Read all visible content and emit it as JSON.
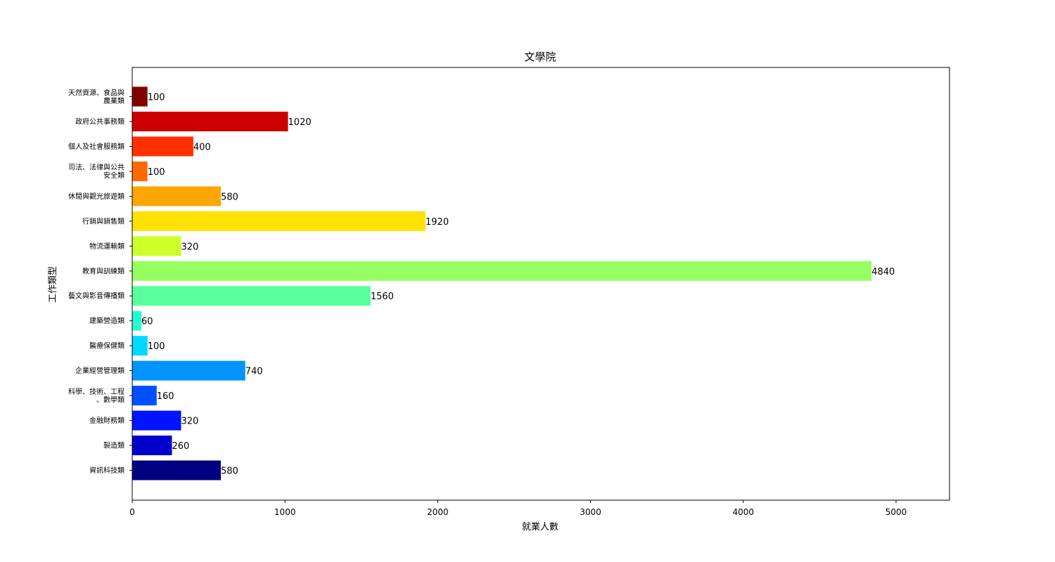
{
  "chart_data": {
    "type": "bar",
    "orientation": "horizontal",
    "title": "文學院",
    "xlabel": "就業人數",
    "ylabel": "工作類型",
    "xlim": [
      0,
      5350
    ],
    "xticks": [
      0,
      1000,
      2000,
      3000,
      4000,
      5000
    ],
    "grid": false,
    "categories": [
      [
        "天然資源、食品與",
        "農業類"
      ],
      [
        "政府公共事務類"
      ],
      [
        "個人及社會服務類"
      ],
      [
        "司法、法律與公共",
        "安全類"
      ],
      [
        "休閒與觀光旅遊類"
      ],
      [
        "行銷與銷售類"
      ],
      [
        "物流運輸類"
      ],
      [
        "教育與訓練類"
      ],
      [
        "藝文與影音傳播類"
      ],
      [
        "建築營造類"
      ],
      [
        "醫療保健類"
      ],
      [
        "企業經營管理類"
      ],
      [
        "科學、技術、工程",
        "、數學類"
      ],
      [
        "金融財務類"
      ],
      [
        "製造類"
      ],
      [
        "資訊科技類"
      ]
    ],
    "values": [
      100,
      1020,
      400,
      100,
      580,
      1920,
      320,
      4840,
      1560,
      60,
      100,
      740,
      160,
      320,
      260,
      580
    ],
    "colors": [
      "#800000",
      "#cc0000",
      "#ff2f00",
      "#ff6a00",
      "#ffa600",
      "#ffe200",
      "#cdff29",
      "#95ff62",
      "#5aff9d",
      "#24ffd4",
      "#00d8ff",
      "#0094ff",
      "#0050ff",
      "#0014ff",
      "#0000cc",
      "#000080"
    ]
  }
}
